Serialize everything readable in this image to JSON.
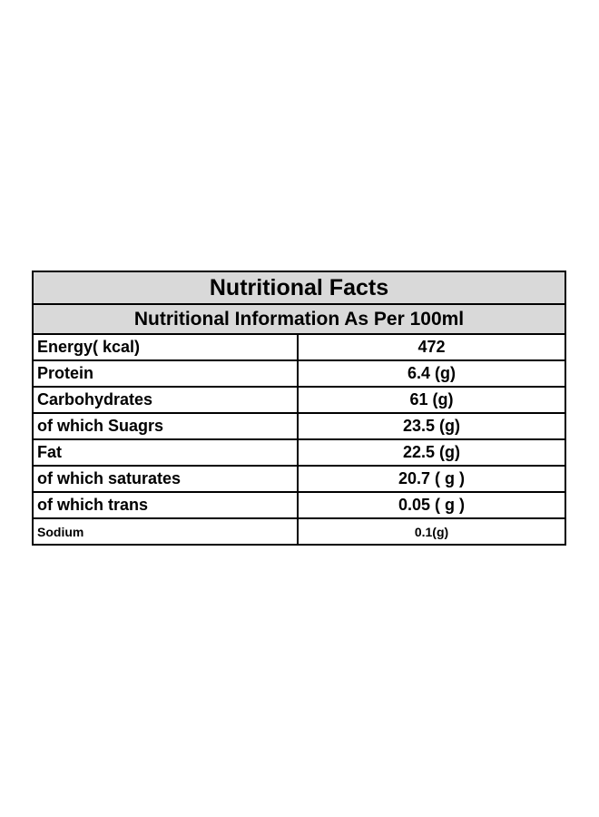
{
  "table": {
    "title": "Nutritional Facts",
    "subtitle": "Nutritional Information As Per 100ml",
    "header_bg_color": "#d9d9d9",
    "rows": [
      {
        "label": "Energy( kcal)",
        "value": "472"
      },
      {
        "label": "Protein",
        "value": "6.4 (g)"
      },
      {
        "label": "Carbohydrates",
        "value": "61 (g)"
      },
      {
        "label": "of which Suagrs",
        "value": "23.5 (g)"
      },
      {
        "label": "Fat",
        "value": "22.5 (g)"
      },
      {
        "label": "of which saturates",
        "value": "20.7 ( g )"
      },
      {
        "label": "of which trans",
        "value": "0.05 ( g )"
      },
      {
        "label": "Sodium",
        "value": "0.1(g)"
      }
    ]
  }
}
